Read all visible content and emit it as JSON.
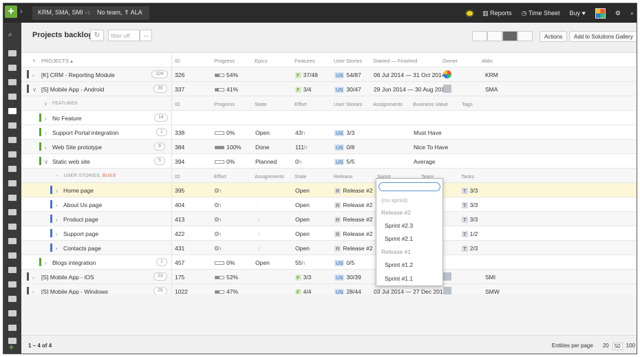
{
  "topbar": {
    "context": "KRM, SMA, SMI",
    "context_more": "+1",
    "team": "No team,",
    "team_arrow": "⇑",
    "team_name": "ALA",
    "reports": "Reports",
    "timesheet": "Time Sheet",
    "buy": "Buy"
  },
  "header": {
    "title": "Projects backlog",
    "filter_placeholder": "filter off",
    "more": "...",
    "actions": "Actions",
    "add_gallery": "Add to Solutions Gallery"
  },
  "projects_header": [
    "PROJECTS ▴",
    "ID",
    "Progress",
    "Epics",
    "Features",
    "User Stories",
    "Started — Finished",
    "Owner",
    "Abbr."
  ],
  "features_header": [
    "FEATURES",
    "ID",
    "Progress",
    "State",
    "Effort",
    "User Stories",
    "Assignments",
    "Business Value",
    "Tags"
  ],
  "stories_header": [
    "USER STORIES,",
    "BUGS",
    "ID",
    "Effort",
    "Assignments",
    "State",
    "Release",
    "Sprint",
    "Team",
    "Tasks"
  ],
  "rows": {
    "crm": {
      "name": "[K] CRM - Reporting Module",
      "count": "104",
      "id": "326",
      "progress": "54%",
      "features": "37/48",
      "us": "54/87",
      "dates": "06 Jul 2014 — 31 Oct 2014",
      "abbr": "KRM"
    },
    "android": {
      "name": "[S] Mobile App - Android",
      "count": "30",
      "id": "337",
      "progress": "41%",
      "features": "3/4",
      "us": "30/47",
      "dates": "29 Jun 2014 — 30 Aug 2015",
      "abbr": "SMA"
    },
    "nofeature": {
      "name": "No Feature",
      "count": "14"
    },
    "support": {
      "name": "Support Portal integration",
      "count": "1",
      "id": "338",
      "progress": "0%",
      "state": "Open",
      "effort": "43",
      "us": "3/3",
      "bv": "Must Have"
    },
    "website": {
      "name": "Web Site prototype",
      "count": "8",
      "id": "384",
      "progress": "100%",
      "state": "Done",
      "effort": "111",
      "us": "0/8",
      "bv": "Nice To Have"
    },
    "static": {
      "name": "Static web site",
      "count": "5",
      "id": "394",
      "progress": "0%",
      "state": "Planned",
      "effort": "0",
      "us": "5/5",
      "bv": "Average"
    },
    "home": {
      "name": "Home page",
      "id": "395",
      "effort": "0",
      "state": "Open",
      "release": "Release #2",
      "tasks": "3/3"
    },
    "about": {
      "name": "About Us page",
      "id": "404",
      "effort": "0",
      "state": "Open",
      "release": "Release #2",
      "tasks": "3/3"
    },
    "product": {
      "name": "Product page",
      "id": "413",
      "effort": "0",
      "state": "Open",
      "release": "Release #2",
      "tasks": "3/3"
    },
    "supportpg": {
      "name": "Support page",
      "id": "422",
      "effort": "0",
      "state": "Open",
      "release": "Release #2",
      "tasks": "1/2"
    },
    "contacts": {
      "name": "Contacts page",
      "id": "431",
      "effort": "0",
      "state": "Open",
      "release": "Release #2",
      "tasks": "2/3"
    },
    "blogs": {
      "name": "Blogs integration",
      "count": "1",
      "id": "457",
      "progress": "0%",
      "state": "Open",
      "effort": "55",
      "us": "0/5"
    },
    "ios": {
      "name": "[S] Mobile App - iOS",
      "count": "23",
      "id": "175",
      "progress": "52%",
      "features": "3/3",
      "us": "30/39",
      "abbr": "SMI"
    },
    "windows": {
      "name": "[S] Mobile App - Windows",
      "count": "26",
      "id": "1022",
      "progress": "47%",
      "features": "4/4",
      "us": "28/44",
      "dates": "03 Jul 2014 — 27 Dec 2014",
      "abbr": "SMW"
    }
  },
  "units": {
    "h": "h"
  },
  "tags": {
    "f": "F",
    "us": "US",
    "r": "R",
    "t": "T"
  },
  "sprint_dropdown": {
    "items": [
      "(no sprint)",
      "Release #2",
      "Sprint #2.3",
      "Sprint #2.1",
      "Release #1",
      "Sprint #1.2",
      "Sprint #1.1"
    ]
  },
  "footer": {
    "range": "1 – 4 of 4",
    "per_page_label": "Entities per page",
    "opts": [
      "20",
      "50",
      "100"
    ]
  },
  "progress_values": {
    "crm": 0.54,
    "android": 0.41,
    "support": 0,
    "website": 1,
    "static": 0,
    "blogs": 0,
    "ios": 0.52,
    "windows": 0.47
  },
  "colors": {
    "accent_green": "#6aae3c",
    "feature_bar": "#5aa33a",
    "story_bar": "#4a72c4",
    "highlight": "#fdf7d8"
  }
}
